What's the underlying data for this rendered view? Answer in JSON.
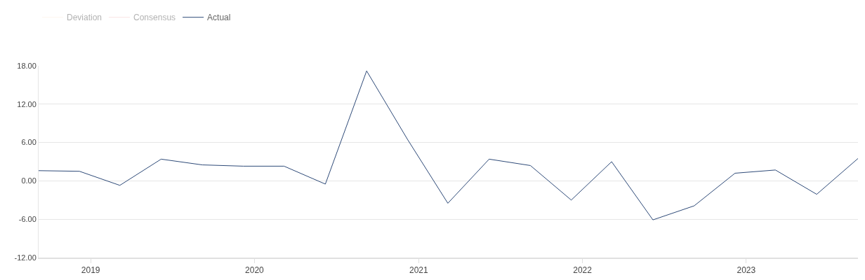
{
  "chart_data": {
    "type": "line",
    "x": [
      "2018-09-07",
      "2018-12-07",
      "2019-03-07",
      "2019-06-07",
      "2019-09-07",
      "2019-12-07",
      "2020-03-07",
      "2020-06-07",
      "2020-09-07",
      "2020-12-07",
      "2021-03-07",
      "2021-06-07",
      "2021-09-07",
      "2021-12-07",
      "2022-03-07",
      "2022-06-07",
      "2022-09-07",
      "2022-12-07",
      "2023-03-07",
      "2023-06-07",
      "2023-09-07"
    ],
    "series": [
      {
        "name": "Deviation",
        "color": "#fbeadc",
        "values": [
          null,
          null,
          null,
          null,
          null,
          null,
          null,
          null,
          null,
          null,
          null,
          null,
          null,
          null,
          null,
          null,
          null,
          null,
          null,
          null,
          null
        ]
      },
      {
        "name": "Consensus",
        "color": "#f3c6c6",
        "values": [
          null,
          null,
          null,
          null,
          null,
          null,
          null,
          null,
          null,
          null,
          null,
          null,
          null,
          null,
          null,
          null,
          null,
          null,
          null,
          null,
          null
        ]
      },
      {
        "name": "Actual",
        "color": "#2e4a78",
        "values": [
          1.6,
          1.5,
          -0.7,
          3.4,
          2.5,
          2.3,
          2.3,
          -0.5,
          17.2,
          6.5,
          -3.5,
          3.4,
          2.4,
          -3.0,
          3.0,
          -6.1,
          -3.9,
          1.2,
          1.7,
          -2.1,
          3.5
        ]
      }
    ],
    "xlim": [
      "2018-09-07",
      "2023-09-07"
    ],
    "xticks": [
      {
        "value": "2019-01-01",
        "label": "2019"
      },
      {
        "value": "2020-01-01",
        "label": "2020"
      },
      {
        "value": "2021-01-01",
        "label": "2021"
      },
      {
        "value": "2022-01-01",
        "label": "2022"
      },
      {
        "value": "2023-01-01",
        "label": "2023"
      }
    ],
    "ylim": [
      -12,
      18
    ],
    "yticks": [
      {
        "value": -12,
        "label": "-12.00"
      },
      {
        "value": -6,
        "label": "-6.00"
      },
      {
        "value": 0,
        "label": "0.00"
      },
      {
        "value": 6,
        "label": "6.00"
      },
      {
        "value": 12,
        "label": "12.00"
      },
      {
        "value": 18,
        "label": "18.00"
      }
    ],
    "grid": "y",
    "legend": "top left",
    "marker": "none",
    "line_style": "solid"
  }
}
